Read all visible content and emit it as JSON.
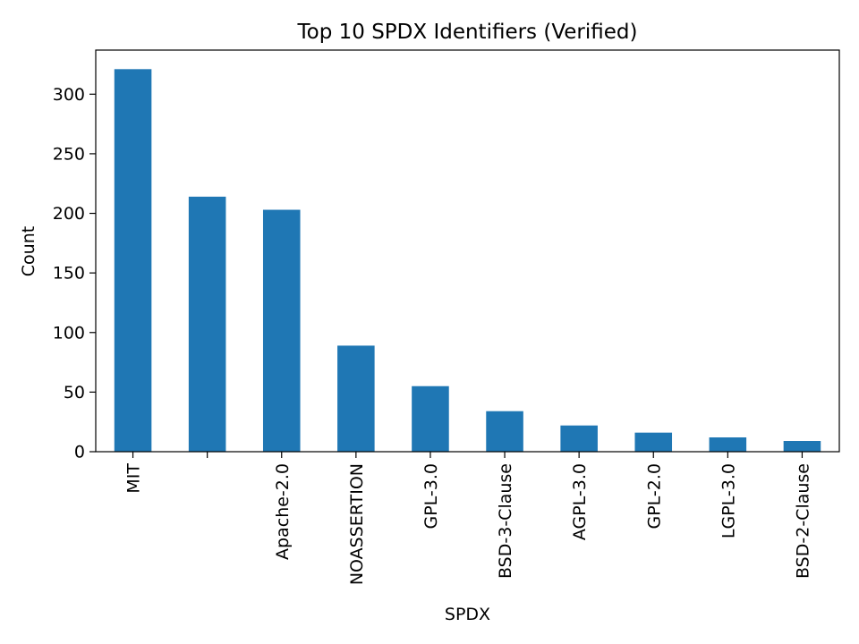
{
  "chart_data": {
    "type": "bar",
    "title": "Top 10 SPDX Identifiers (Verified)",
    "xlabel": "SPDX",
    "ylabel": "Count",
    "categories": [
      "MIT",
      "",
      "Apache-2.0",
      "NOASSERTION",
      "GPL-3.0",
      "BSD-3-Clause",
      "AGPL-3.0",
      "GPL-2.0",
      "LGPL-3.0",
      "BSD-2-Clause"
    ],
    "values": [
      321,
      214,
      203,
      89,
      55,
      34,
      22,
      16,
      12,
      9
    ],
    "ylim": [
      0,
      337
    ],
    "yticks": [
      0,
      50,
      100,
      150,
      200,
      250,
      300
    ],
    "bar_color": "#1f77b4",
    "grid": false,
    "legend": "none"
  }
}
